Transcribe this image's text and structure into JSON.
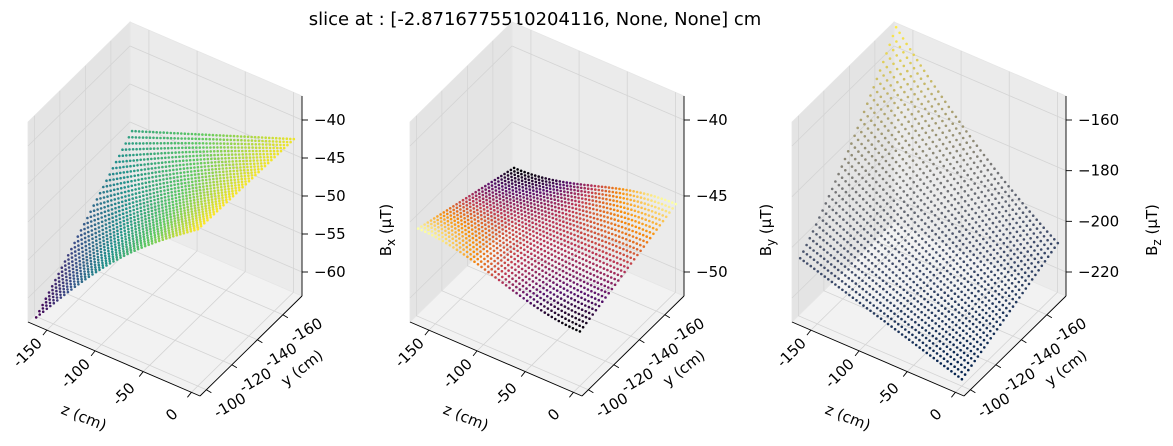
{
  "figure": {
    "suptitle": "slice at : [-2.8716775510204116, None, None] cm"
  },
  "chart_data": [
    {
      "type": "scatter",
      "variant": "3d-surface",
      "title": "B",
      "title_subscript": "x",
      "xlabel": "z (cm)",
      "ylabel": "y (cm)",
      "zlabel_main": "B",
      "zlabel_sub": "x",
      "zlabel_unit": " (µT)",
      "x_ticks": [
        "0",
        "-50",
        "-100",
        "-150"
      ],
      "y_ticks": [
        "-100",
        "-120",
        "-140",
        "-160"
      ],
      "z_ticks": [
        "−40",
        "−45",
        "−50",
        "−55",
        "−60"
      ],
      "xlim": [
        0,
        -180
      ],
      "ylim": [
        -90,
        -170
      ],
      "zlim": [
        -63,
        -37
      ],
      "colormap": "viridis",
      "colormap_stops": [
        "#440154",
        "#3b528b",
        "#21918c",
        "#5ec962",
        "#fde725"
      ],
      "surface_samples": {
        "corner_z0_y-95": -42.0,
        "corner_z0_y-165": -42.5,
        "corner_z-175_y-95": -62.5,
        "corner_z-175_y-165": -50.0
      }
    },
    {
      "type": "scatter",
      "variant": "3d-surface",
      "title": "B",
      "title_subscript": "y",
      "xlabel": "z (cm)",
      "ylabel": "y (cm)",
      "zlabel_main": "B",
      "zlabel_sub": "y",
      "zlabel_unit": " (µT)",
      "x_ticks": [
        "0",
        "-50",
        "-100",
        "-150"
      ],
      "y_ticks": [
        "-100",
        "-120",
        "-140",
        "-160"
      ],
      "z_ticks": [
        "−40",
        "−45",
        "−50"
      ],
      "xlim": [
        0,
        -180
      ],
      "ylim": [
        -90,
        -170
      ],
      "zlim": [
        -52,
        -37
      ],
      "colormap": "inferno",
      "colormap_stops": [
        "#000004",
        "#57106e",
        "#bc3754",
        "#f98e09",
        "#fcffa4"
      ],
      "surface_samples": {
        "value_range": [
          -47.5,
          -45.0
        ],
        "shape": "saddle"
      }
    },
    {
      "type": "scatter",
      "variant": "3d-surface",
      "title": "B",
      "title_subscript": "z",
      "xlabel": "z (cm)",
      "ylabel": "y (cm)",
      "zlabel_main": "B",
      "zlabel_sub": "z",
      "zlabel_unit": " (µT)",
      "x_ticks": [
        "0",
        "-50",
        "-100",
        "-150"
      ],
      "y_ticks": [
        "-100",
        "-120",
        "-140",
        "-160"
      ],
      "z_ticks": [
        "−160",
        "−180",
        "−200",
        "−220"
      ],
      "xlim": [
        0,
        -180
      ],
      "ylim": [
        -90,
        -170
      ],
      "zlim": [
        -238,
        -152
      ],
      "colormap": "cividis",
      "colormap_stops": [
        "#00204d",
        "#414d6b",
        "#7c7b78",
        "#bcaf6f",
        "#ffea46"
      ],
      "surface_samples": {
        "corner_z0_y-95": -233.0,
        "corner_z-175_y-165": -160.0
      }
    }
  ]
}
